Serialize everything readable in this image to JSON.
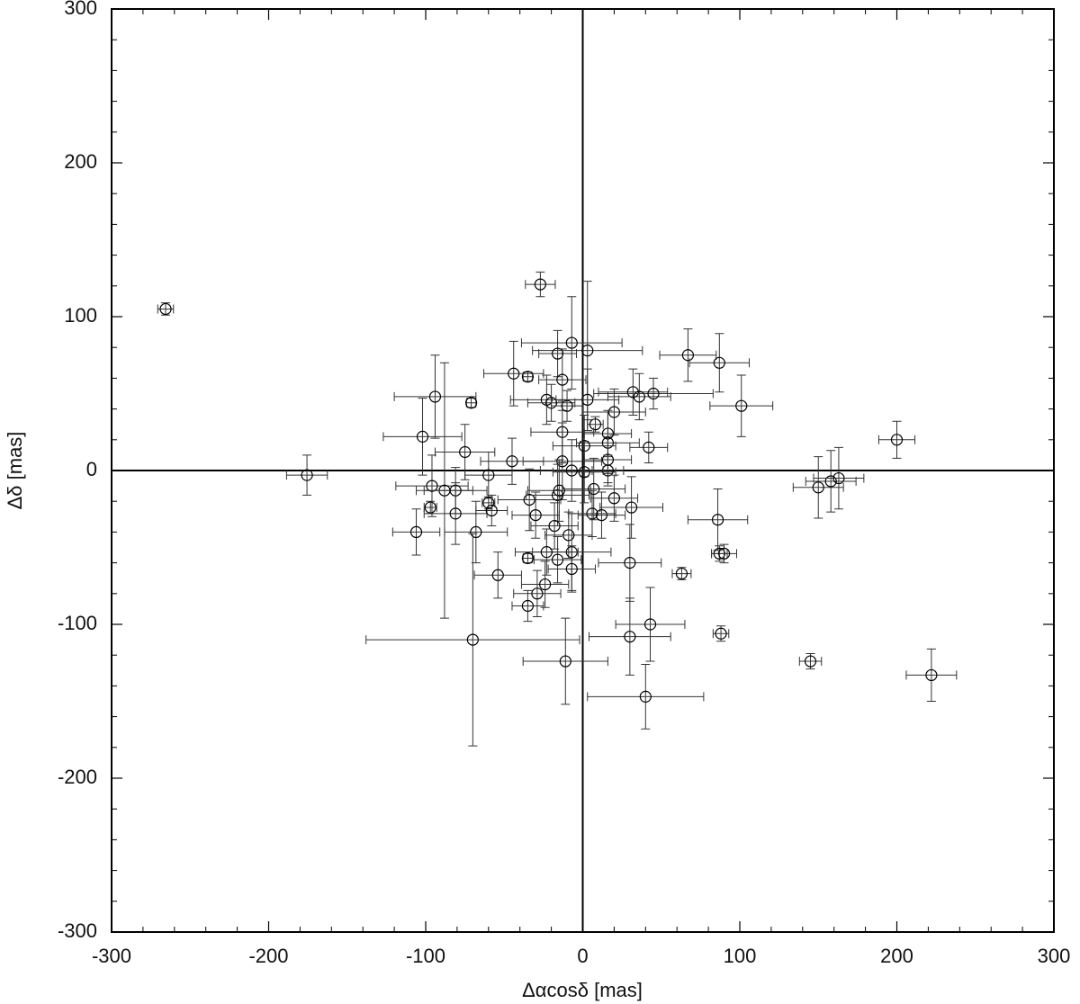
{
  "chart_data": {
    "type": "scatter",
    "x_label": "Δαcosδ [mas]",
    "y_label": "Δδ [mas]",
    "xlim": [
      -300,
      300
    ],
    "ylim": [
      -300,
      300
    ],
    "xticks": [
      -300,
      -200,
      -100,
      0,
      100,
      200,
      300
    ],
    "yticks": [
      -300,
      -200,
      -100,
      0,
      100,
      200,
      300
    ],
    "minor_tick_step": 20,
    "zero_lines": true,
    "color": "#000000",
    "x": [
      -265.6,
      -175.6,
      -102,
      -94,
      -71,
      -35,
      -27,
      -7,
      3,
      -16,
      -44,
      67,
      87,
      101,
      200,
      32,
      36,
      45,
      -23,
      -20,
      -13,
      -10,
      3,
      20,
      8,
      16,
      16,
      42,
      -13,
      -45,
      -75,
      -13,
      1,
      1,
      16,
      16,
      -7,
      -96,
      -88,
      -81,
      -97,
      -81,
      -60,
      -60,
      -58,
      -106,
      -68,
      -34,
      -30,
      -16,
      -15,
      7,
      20,
      31,
      12,
      6,
      -18,
      -9,
      -7,
      -23,
      -35,
      -16,
      -7,
      -54,
      30,
      63,
      86,
      87,
      90,
      -24,
      -29,
      -35,
      -70,
      -11,
      30,
      43,
      40,
      88,
      145,
      222,
      150,
      158,
      163
    ],
    "y": [
      105,
      -3,
      22,
      48,
      44,
      61,
      121,
      83,
      78,
      76,
      63,
      75,
      70,
      42,
      20,
      51,
      48,
      50,
      46,
      44,
      59,
      42,
      46,
      38,
      30,
      24,
      18,
      15,
      25,
      6,
      12,
      6,
      16,
      -1,
      7,
      0,
      0,
      -10,
      -13,
      -13,
      -24,
      -28,
      -3,
      -21,
      -26,
      -40,
      -40,
      -19,
      -29,
      -16,
      -13,
      -12,
      -18,
      -24,
      -29,
      -28,
      -36,
      -42,
      -53,
      -53,
      -57,
      -58,
      -64,
      -68,
      -60,
      -67,
      -32,
      -54,
      -54,
      -74,
      -80,
      -88,
      -110,
      -124,
      -108,
      -100,
      -147,
      -106,
      -124,
      -133,
      -11,
      -7,
      -5
    ],
    "xerr": [
      5,
      13,
      25,
      26,
      3,
      3,
      9.5,
      32,
      35,
      12,
      19,
      18,
      19,
      20,
      11.5,
      22,
      20,
      38,
      23,
      15,
      15,
      10,
      20,
      20,
      5,
      15,
      20,
      12,
      20,
      20,
      19,
      25,
      20,
      20,
      15,
      10,
      20,
      23,
      18,
      20,
      4,
      20,
      15,
      4,
      10,
      15,
      20,
      20,
      15,
      20,
      20,
      20,
      15,
      20,
      15,
      15,
      15,
      15,
      25,
      20,
      3,
      15,
      15,
      15,
      20,
      6,
      19,
      5,
      8,
      15,
      15,
      10,
      68,
      27,
      26,
      22,
      37,
      5,
      7,
      16,
      16,
      16,
      16
    ],
    "yerr": [
      4,
      13,
      25,
      27,
      3,
      3,
      8,
      30,
      45,
      15,
      21,
      17,
      19,
      20,
      12,
      15,
      15,
      10,
      16,
      12,
      20,
      10,
      20,
      15,
      5,
      15,
      20,
      10,
      20,
      15,
      18,
      25,
      20,
      20,
      15,
      10,
      20,
      20,
      83,
      15,
      4,
      20,
      15,
      4,
      10,
      15,
      20,
      20,
      15,
      20,
      20,
      20,
      15,
      20,
      15,
      15,
      15,
      15,
      25,
      15,
      3,
      15,
      15,
      15,
      25,
      4,
      20,
      5,
      6,
      15,
      15,
      10,
      69,
      28,
      25,
      24,
      21,
      5,
      5,
      17,
      20,
      20,
      20
    ]
  }
}
